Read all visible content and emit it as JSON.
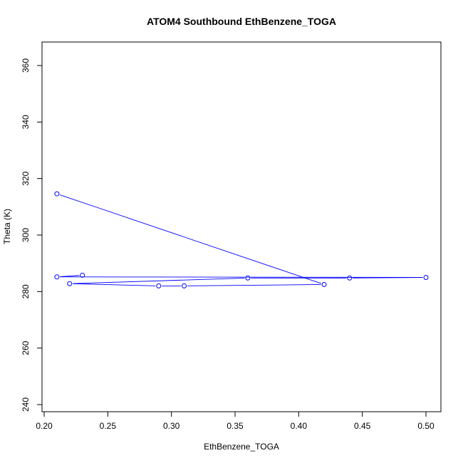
{
  "chart_data": {
    "type": "line",
    "title": "ATOM4 Southbound EthBenzene_TOGA",
    "xlabel": "EthBenzene_TOGA",
    "ylabel": "Theta (K)",
    "xlim": [
      0.2,
      0.5
    ],
    "ylim": [
      240,
      360
    ],
    "x_ticks": [
      "0.20",
      "0.25",
      "0.30",
      "0.35",
      "0.40",
      "0.45",
      "0.50"
    ],
    "y_ticks": [
      "240",
      "260",
      "280",
      "300",
      "320",
      "340",
      "360"
    ],
    "series": [
      {
        "color": "#0000ff",
        "marker": "open-circle",
        "points": [
          [
            0.21,
            314.6
          ],
          [
            0.42,
            282.5
          ],
          [
            0.31,
            282.0
          ],
          [
            0.29,
            282.0
          ],
          [
            0.22,
            282.8
          ],
          [
            0.36,
            284.8
          ],
          [
            0.44,
            284.8
          ],
          [
            0.5,
            285.0
          ],
          [
            0.21,
            285.2
          ],
          [
            0.23,
            285.8
          ]
        ]
      }
    ],
    "grid": false,
    "legend": "none"
  }
}
